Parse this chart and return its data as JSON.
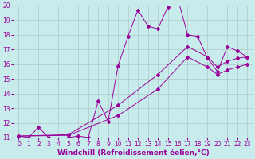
{
  "xlabel": "Windchill (Refroidissement éolien,°C)",
  "xlim": [
    -0.5,
    23.5
  ],
  "ylim": [
    11,
    20
  ],
  "xticks": [
    0,
    1,
    2,
    3,
    4,
    5,
    6,
    7,
    8,
    9,
    10,
    11,
    12,
    13,
    14,
    15,
    16,
    17,
    18,
    19,
    20,
    21,
    22,
    23
  ],
  "yticks": [
    11,
    12,
    13,
    14,
    15,
    16,
    17,
    18,
    19,
    20
  ],
  "bg_color": "#c8ecec",
  "line_color": "#990099",
  "grid_color": "#b0c8c8",
  "line1_x": [
    0,
    1,
    2,
    3,
    4,
    5,
    6,
    7,
    8,
    9,
    10,
    11,
    12,
    13,
    14,
    15,
    16,
    17,
    18,
    19,
    20,
    21,
    22,
    23
  ],
  "line1_y": [
    11.1,
    11.0,
    11.7,
    11.0,
    10.9,
    11.0,
    11.1,
    11.0,
    13.5,
    12.1,
    15.9,
    17.9,
    19.7,
    18.6,
    18.4,
    19.9,
    20.5,
    18.0,
    17.9,
    16.4,
    15.5,
    17.2,
    16.9,
    16.5
  ],
  "line2_x": [
    0,
    5,
    10,
    14,
    17,
    19,
    20,
    21,
    22,
    23
  ],
  "line2_y": [
    11.1,
    11.2,
    13.2,
    15.3,
    17.2,
    16.5,
    15.8,
    16.2,
    16.4,
    16.5
  ],
  "line3_x": [
    0,
    5,
    10,
    14,
    17,
    19,
    20,
    21,
    22,
    23
  ],
  "line3_y": [
    11.1,
    11.15,
    12.5,
    14.3,
    16.5,
    15.8,
    15.3,
    15.6,
    15.8,
    16.0
  ],
  "tick_fontsize": 5.5,
  "xlabel_fontsize": 6.5,
  "marker": "D",
  "markersize": 2.0
}
